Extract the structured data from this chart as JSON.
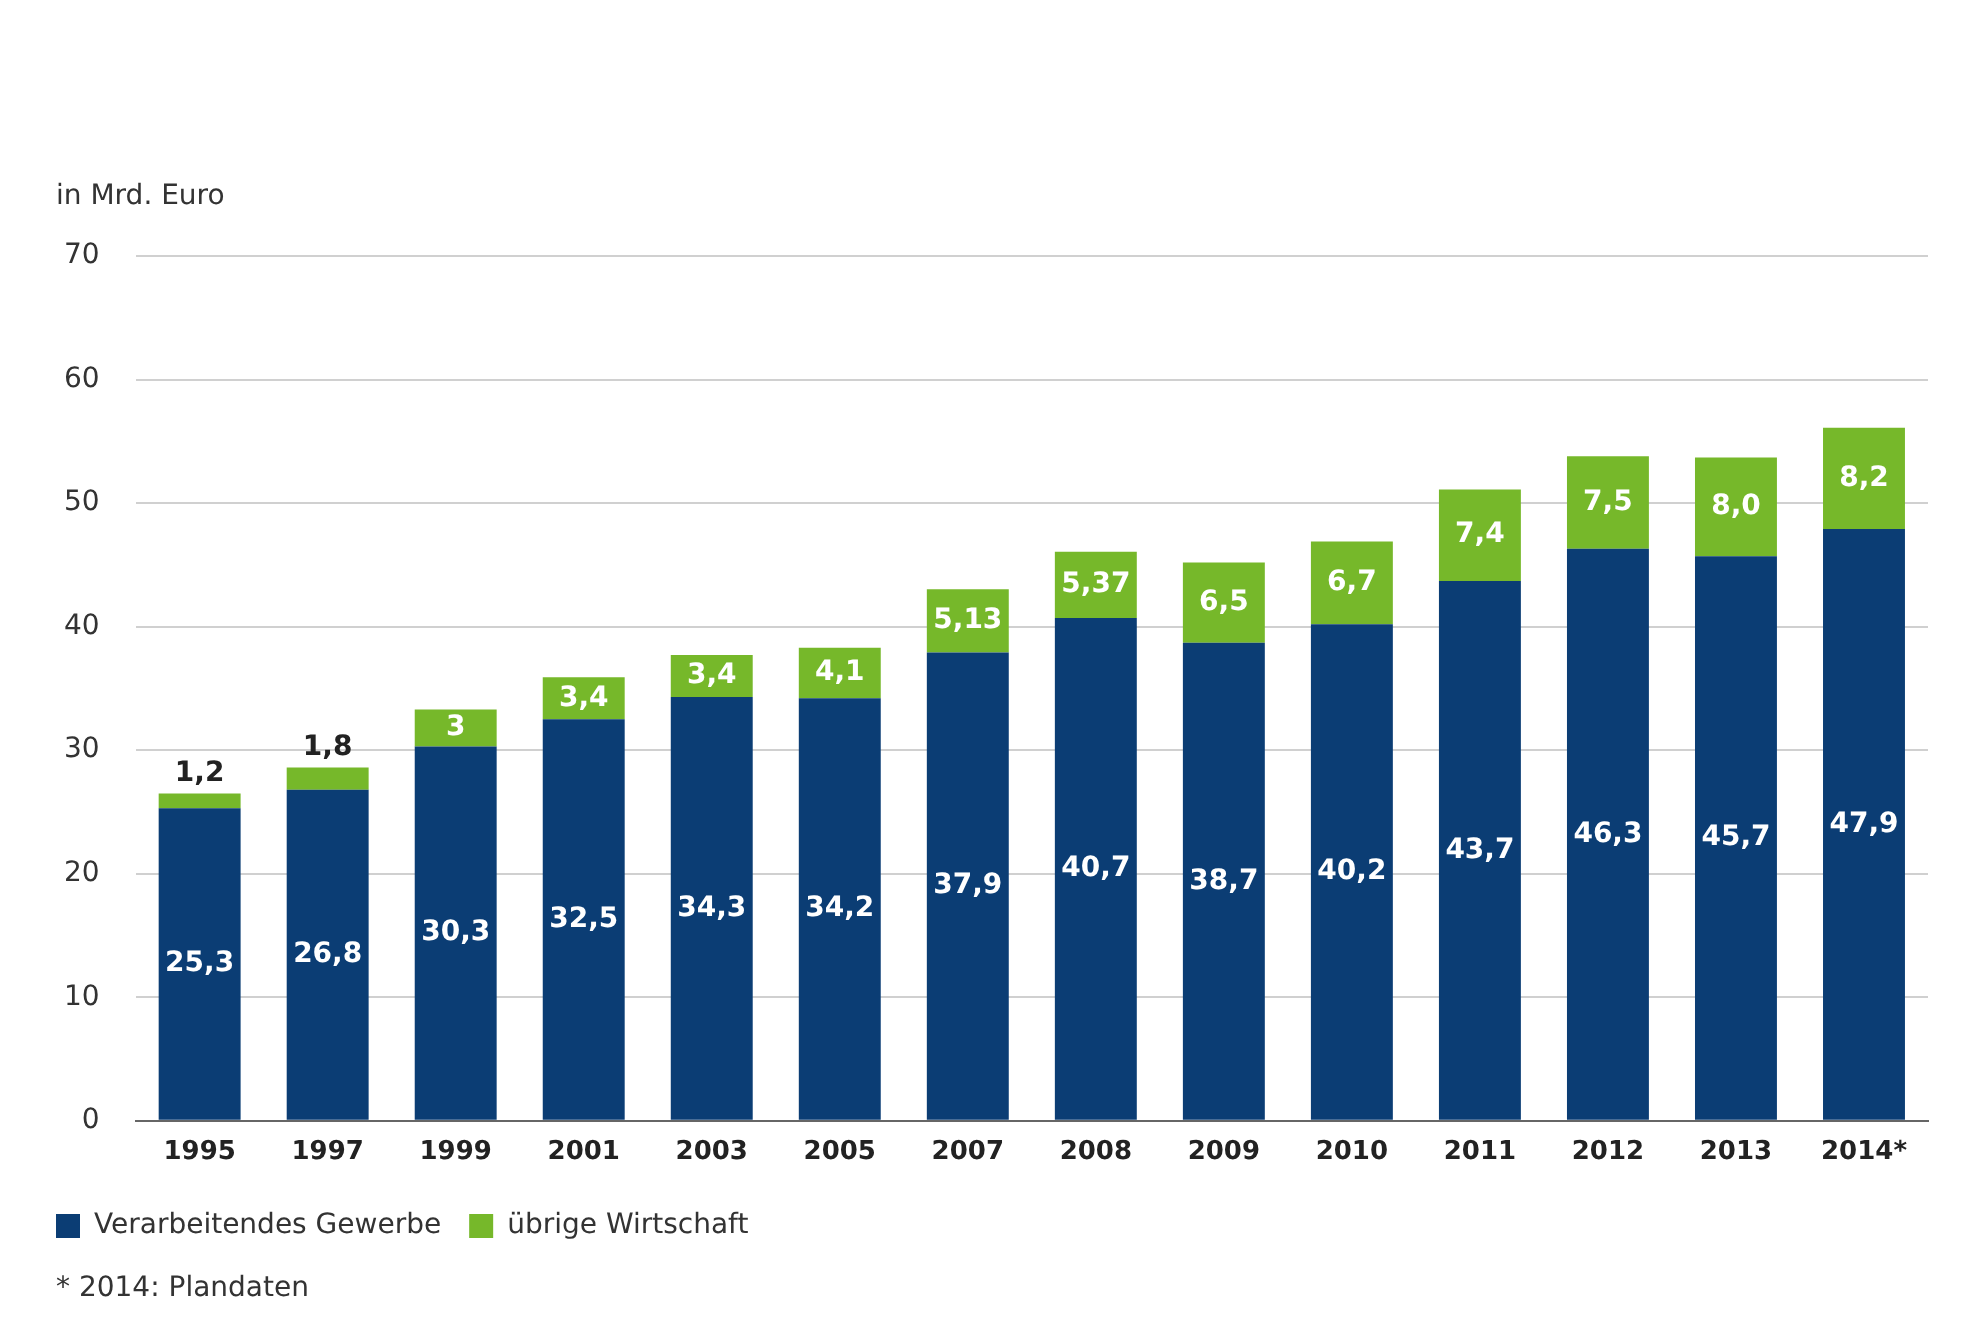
{
  "chart_data": {
    "type": "bar",
    "stacked": true,
    "ylabel": "in Mrd. Euro",
    "categories": [
      "1995",
      "1997",
      "1999",
      "2001",
      "2003",
      "2005",
      "2007",
      "2008",
      "2009",
      "2010",
      "2011",
      "2012",
      "2013",
      "2014*"
    ],
    "series": [
      {
        "name": "Verarbeitendes Gewerbe",
        "color": "#0b3d74",
        "values": [
          25.3,
          26.8,
          30.3,
          32.5,
          34.3,
          34.2,
          37.9,
          40.7,
          38.7,
          40.2,
          43.7,
          46.3,
          45.7,
          47.9
        ],
        "value_labels": [
          "25,3",
          "26,8",
          "30,3",
          "32,5",
          "34,3",
          "34,2",
          "37,9",
          "40,7",
          "38,7",
          "40,2",
          "43,7",
          "46,3",
          "45,7",
          "47,9"
        ]
      },
      {
        "name": "übrige Wirtschaft",
        "color": "#76b82a",
        "values": [
          1.2,
          1.8,
          3,
          3.4,
          3.4,
          4.1,
          5.13,
          5.37,
          6.5,
          6.7,
          7.4,
          7.5,
          8.0,
          8.2
        ],
        "value_labels": [
          "1,2",
          "1,8",
          "3",
          "3,4",
          "3,4",
          "4,1",
          "5,13",
          "5,37",
          "6,5",
          "6,7",
          "7,4",
          "7,5",
          "8,0",
          "8,2"
        ]
      }
    ],
    "ylim": [
      0,
      70
    ],
    "yticks": [
      0,
      10,
      20,
      30,
      40,
      50,
      60,
      70
    ],
    "grid": "y",
    "legend": "bottom left",
    "annotations": [
      "* 2014: Plandaten"
    ]
  }
}
